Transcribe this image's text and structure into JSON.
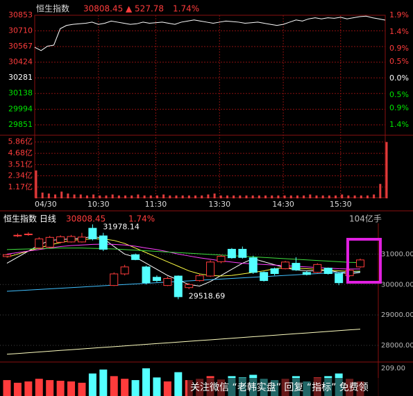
{
  "chart_data": [
    {
      "type": "line",
      "title": "恒生指数",
      "price_label": "30808.45",
      "change_label": "▲ 527.78",
      "percent_label": "1.74%",
      "categories": [
        "04/30",
        null,
        null,
        null,
        null,
        null,
        null,
        null,
        null,
        null,
        "10:30",
        null,
        null,
        null,
        null,
        null,
        null,
        null,
        null,
        "11:30",
        null,
        null,
        null,
        null,
        null,
        null,
        null,
        null,
        null,
        "13:30",
        null,
        null,
        null,
        null,
        null,
        null,
        null,
        null,
        null,
        "14:30",
        null,
        null,
        null,
        null,
        null,
        null,
        null,
        null,
        "15:30",
        null,
        null,
        null,
        null,
        null,
        null,
        null
      ],
      "values": [
        30560,
        30530,
        30570,
        30580,
        30730,
        30760,
        30770,
        30775,
        30780,
        30790,
        30770,
        30780,
        30800,
        30790,
        30780,
        30770,
        30775,
        30790,
        30780,
        30785,
        30790,
        30780,
        30770,
        30790,
        30800,
        30810,
        30800,
        30790,
        30780,
        30790,
        30800,
        30795,
        30790,
        30780,
        30785,
        30790,
        30780,
        30770,
        30760,
        30770,
        30790,
        30810,
        30800,
        30820,
        30830,
        30820,
        30830,
        30825,
        30835,
        30820,
        30830,
        30840,
        30845,
        30830,
        30820,
        30808.45
      ],
      "color": "#ffffff",
      "ylim": [
        29851,
        30853
      ],
      "yticks": [
        30853,
        30710,
        30567,
        30424,
        30281,
        30138,
        29994,
        29851
      ],
      "y2lim": [
        -1.4,
        1.9
      ],
      "y2ticks": [
        {
          "value": 1.9,
          "label": "1.9%"
        },
        {
          "value": 1.4,
          "label": "1.4%"
        },
        {
          "value": 0.9,
          "label": "0.9%"
        },
        {
          "value": 0.5,
          "label": "0.5%"
        },
        {
          "value": 0.0,
          "label": "0.0%"
        },
        {
          "value": -0.5,
          "label": "0.5%"
        },
        {
          "value": -0.9,
          "label": "0.9%"
        },
        {
          "value": -1.4,
          "label": "1.4%"
        }
      ],
      "grid": true
    },
    {
      "type": "bar",
      "color": "#e03c3c",
      "values": [
        2.9,
        0.6,
        0.5,
        0.4,
        0.7,
        0.5,
        0.4,
        0.4,
        0.3,
        0.4,
        0.3,
        0.3,
        0.4,
        0.3,
        0.3,
        0.3,
        0.4,
        0.3,
        0.3,
        0.3,
        0.4,
        0.3,
        0.3,
        0.3,
        0.3,
        0.3,
        0.3,
        0.4,
        0.5,
        0.3,
        0.3,
        0.3,
        0.3,
        0.3,
        0.3,
        0.3,
        0.3,
        0.3,
        0.3,
        0.3,
        0.3,
        0.3,
        0.3,
        0.4,
        0.3,
        0.3,
        0.3,
        0.3,
        0.4,
        0.3,
        0.3,
        0.3,
        0.3,
        0.4,
        1.5,
        5.86
      ],
      "ylim": [
        0,
        6.2
      ],
      "yticks": [
        {
          "value": 5.86,
          "label": "5.86亿"
        },
        {
          "value": 4.68,
          "label": "4.68亿"
        },
        {
          "value": 3.51,
          "label": "3.51亿"
        },
        {
          "value": 2.34,
          "label": "2.34亿"
        },
        {
          "value": 1.17,
          "label": "1.17亿"
        }
      ],
      "grid": true
    },
    {
      "type": "candlestick",
      "title": "恒生指数 日线",
      "price_label": "30808.45",
      "percent_label": "1.74%",
      "volume_label": "104亿手",
      "up_color": "#ff3c3c",
      "down_color": "#54ffff",
      "candles": [
        {
          "open": 30920,
          "high": 31010,
          "low": 30890,
          "close": 30980
        },
        {
          "open": 31600,
          "high": 31680,
          "low": 31560,
          "close": 31620
        },
        {
          "open": 31640,
          "high": 31720,
          "low": 31600,
          "close": 31660
        },
        {
          "open": 31200,
          "high": 31560,
          "low": 31150,
          "close": 31500
        },
        {
          "open": 31230,
          "high": 31600,
          "low": 31200,
          "close": 31550
        },
        {
          "open": 31390,
          "high": 31620,
          "low": 31350,
          "close": 31570
        },
        {
          "open": 31400,
          "high": 31630,
          "low": 31380,
          "close": 31580
        },
        {
          "open": 31400,
          "high": 31700,
          "low": 31380,
          "close": 31560
        },
        {
          "open": 31850,
          "high": 31978.14,
          "low": 31450,
          "close": 31500
        },
        {
          "open": 31600,
          "high": 31700,
          "low": 31100,
          "close": 31160
        },
        {
          "open": 29970,
          "high": 30400,
          "low": 29950,
          "close": 30350
        },
        {
          "open": 30350,
          "high": 30650,
          "low": 30300,
          "close": 30580
        },
        {
          "open": 30980,
          "high": 31020,
          "low": 30800,
          "close": 30820
        },
        {
          "open": 30580,
          "high": 30620,
          "low": 30000,
          "close": 30060
        },
        {
          "open": 30240,
          "high": 30300,
          "low": 30080,
          "close": 30130
        },
        {
          "open": 29970,
          "high": 30260,
          "low": 29950,
          "close": 30200
        },
        {
          "open": 30280,
          "high": 30300,
          "low": 29518.69,
          "close": 29600
        },
        {
          "open": 29900,
          "high": 30050,
          "low": 29850,
          "close": 30000
        },
        {
          "open": 30130,
          "high": 30350,
          "low": 30100,
          "close": 30290
        },
        {
          "open": 30280,
          "high": 30800,
          "low": 30250,
          "close": 30740
        },
        {
          "open": 30750,
          "high": 30980,
          "low": 30700,
          "close": 30930
        },
        {
          "open": 31160,
          "high": 31200,
          "low": 30850,
          "close": 30880
        },
        {
          "open": 31160,
          "high": 31250,
          "low": 30850,
          "close": 30890
        },
        {
          "open": 30880,
          "high": 30950,
          "low": 30350,
          "close": 30400
        },
        {
          "open": 30400,
          "high": 30430,
          "low": 30100,
          "close": 30130
        },
        {
          "open": 30520,
          "high": 30560,
          "low": 30300,
          "close": 30360
        },
        {
          "open": 30520,
          "high": 30780,
          "low": 30500,
          "close": 30740
        },
        {
          "open": 30700,
          "high": 30900,
          "low": 30450,
          "close": 30480
        },
        {
          "open": 30400,
          "high": 30450,
          "low": 30300,
          "close": 30330
        },
        {
          "open": 30400,
          "high": 30700,
          "low": 30380,
          "close": 30660
        },
        {
          "open": 30540,
          "high": 30560,
          "low": 30330,
          "close": 30360
        },
        {
          "open": 30360,
          "high": 30400,
          "low": 29980,
          "close": 30060
        },
        {
          "open": 30290,
          "high": 30520,
          "low": 30250,
          "close": 30470
        },
        {
          "open": 30580,
          "high": 30853,
          "low": 30550,
          "close": 30808.45
        }
      ],
      "series": [
        {
          "color": "#ffffff",
          "values": [
            30700,
            30900,
            31100,
            31300,
            31450,
            31480,
            31500,
            31520,
            31580,
            31520,
            31250,
            31000,
            30900,
            30700,
            30500,
            30300,
            30150,
            30000,
            29950,
            30100,
            30300,
            30500,
            30700,
            30850,
            30750,
            30650,
            30550,
            30480,
            30450,
            30450,
            30470,
            30400,
            30350,
            30400
          ]
        },
        {
          "color": "#ffff44",
          "values": [
            30900,
            31000,
            31100,
            31200,
            31300,
            31380,
            31450,
            31480,
            31500,
            31500,
            31450,
            31350,
            31200,
            31050,
            30900,
            30750,
            30600,
            30450,
            30350,
            30300,
            30280,
            30300,
            30350,
            30400,
            30450,
            30520,
            30560,
            30540,
            30520,
            30500,
            30470,
            30450,
            30430,
            30440
          ]
        },
        {
          "color": "#ff40ff",
          "values": [
            31000,
            31050,
            31100,
            31150,
            31200,
            31250,
            31280,
            31300,
            31320,
            31330,
            31320,
            31300,
            31260,
            31200,
            31150,
            31080,
            31000,
            30940,
            30880,
            30830,
            30780,
            30740,
            30700,
            30680,
            30660,
            30640,
            30620,
            30600,
            30580,
            30560,
            30540,
            30520,
            30510,
            30510
          ]
        },
        {
          "color": "#40e040",
          "values": [
            31150,
            31160,
            31170,
            31180,
            31190,
            31200,
            31200,
            31200,
            31190,
            31180,
            31170,
            31150,
            31130,
            31110,
            31090,
            31070,
            31050,
            31030,
            31010,
            30990,
            30970,
            30950,
            30930,
            30910,
            30890,
            30870,
            30850,
            30830,
            30810,
            30790,
            30770,
            30750,
            30730,
            30720
          ]
        },
        {
          "color": "#40c0ff",
          "values": [
            29780,
            29800,
            29820,
            29840,
            29860,
            29880,
            29900,
            29920,
            29940,
            29960,
            29980,
            30000,
            30020,
            30040,
            30060,
            30080,
            30100,
            30120,
            30140,
            30160,
            30180,
            30200,
            30220,
            30240,
            30260,
            30280,
            30300,
            30320,
            30340,
            30360,
            30380,
            30400,
            30410,
            30420
          ]
        },
        {
          "color": "#ffffc0",
          "values": [
            27710,
            27735,
            27760,
            27785,
            27810,
            27835,
            27860,
            27885,
            27910,
            27935,
            27960,
            27985,
            28010,
            28035,
            28060,
            28085,
            28110,
            28135,
            28160,
            28185,
            28210,
            28235,
            28260,
            28285,
            28310,
            28335,
            28360,
            28385,
            28410,
            28435,
            28460,
            28485,
            28510,
            28535
          ]
        }
      ],
      "ylim": [
        27500,
        32400
      ],
      "yticks": [
        {
          "value": 31000,
          "label": "31000.00"
        },
        {
          "value": 30000,
          "label": "30000.00"
        },
        {
          "value": 29000,
          "label": "29000.00"
        },
        {
          "value": 28000,
          "label": "28000.00"
        }
      ],
      "grid": true
    },
    {
      "type": "bar",
      "values": [
        120,
        100,
        110,
        130,
        120,
        115,
        110,
        100,
        170,
        200,
        150,
        130,
        120,
        209,
        140,
        110,
        180,
        120,
        130,
        150,
        125,
        150,
        140,
        160,
        130,
        120,
        130,
        150,
        110,
        140,
        150,
        170,
        130,
        110
      ],
      "colors": [
        "#ff3c3c",
        "#ff3c3c",
        "#ff3c3c",
        "#ff3c3c",
        "#ff3c3c",
        "#ff3c3c",
        "#ff3c3c",
        "#ff3c3c",
        "#54ffff",
        "#54ffff",
        "#ff3c3c",
        "#ff3c3c",
        "#54ffff",
        "#54ffff",
        "#54ffff",
        "#ff3c3c",
        "#54ffff",
        "#ff3c3c",
        "#ff3c3c",
        "#ff3c3c",
        "#ff3c3c",
        "#54ffff",
        "#54ffff",
        "#54ffff",
        "#54ffff",
        "#54ffff",
        "#ff3c3c",
        "#54ffff",
        "#54ffff",
        "#ff3c3c",
        "#54ffff",
        "#54ffff",
        "#ff3c3c",
        "#ff3c3c"
      ],
      "ylim": [
        0,
        220
      ],
      "yticks": [
        {
          "value": 209,
          "label": "209.00"
        }
      ]
    }
  ],
  "watermark": "关注微信 “老韩实盘” 回复 “指标” 免费领"
}
